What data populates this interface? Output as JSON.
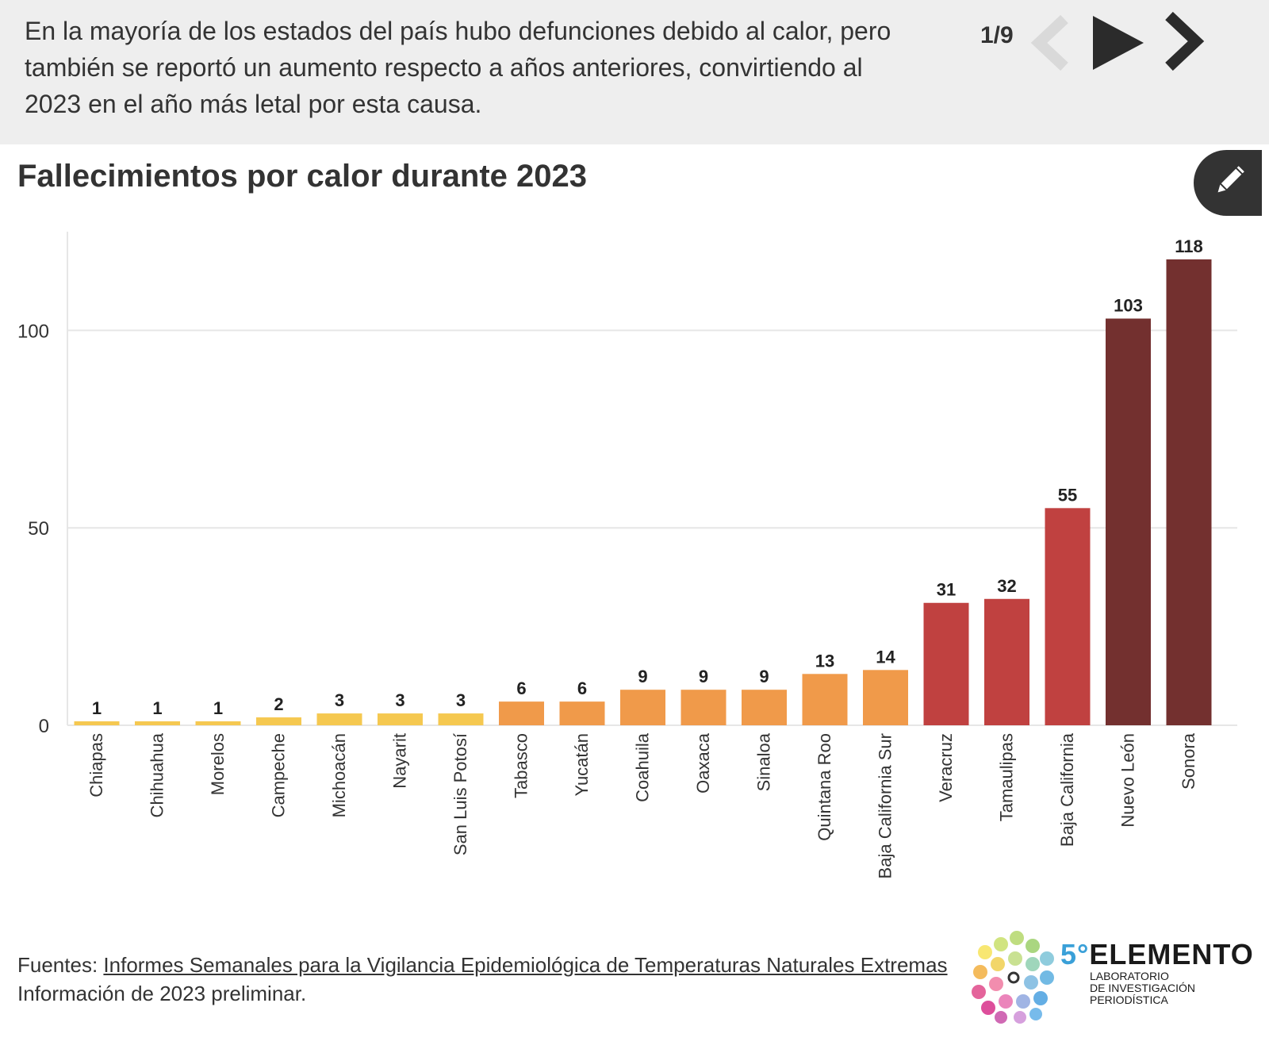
{
  "header": {
    "narrative": "En la mayoría de los estados del país hubo defunciones debido al calor, pero también se reportó un aumento respecto a años anteriores, convirtiendo al 2023 en el año más letal por esta causa.",
    "counter": "1/9"
  },
  "chart_data": {
    "type": "bar",
    "title": "Fallecimientos por calor durante 2023",
    "xlabel": "",
    "ylabel": "",
    "ylim": [
      0,
      125
    ],
    "yticks": [
      0,
      50,
      100
    ],
    "grid": true,
    "categories": [
      "Chiapas",
      "Chihuahua",
      "Morelos",
      "Campeche",
      "Michoacán",
      "Nayarit",
      "San Luis Potosí",
      "Tabasco",
      "Yucatán",
      "Coahuila",
      "Oaxaca",
      "Sinaloa",
      "Quintana Roo",
      "Baja California Sur",
      "Veracruz",
      "Tamaulipas",
      "Baja California",
      "Nuevo León",
      "Sonora"
    ],
    "values": [
      1,
      1,
      1,
      2,
      3,
      3,
      3,
      6,
      6,
      9,
      9,
      9,
      13,
      14,
      31,
      32,
      55,
      103,
      118
    ],
    "colors": [
      "#f5c850",
      "#f5c850",
      "#f5c850",
      "#f5c850",
      "#f5c850",
      "#f5c850",
      "#f5c850",
      "#f09a4a",
      "#f09a4a",
      "#f09a4a",
      "#f09a4a",
      "#f09a4a",
      "#f09a4a",
      "#f09a4a",
      "#c04140",
      "#c04140",
      "#c04140",
      "#73302f",
      "#73302f"
    ]
  },
  "footer": {
    "source_prefix": "Fuentes: ",
    "source_link": "Informes Semanales para la Vigilancia Epidemiológica de Temperaturas Naturales Extremas",
    "note": "Información de 2023 preliminar."
  },
  "logo": {
    "number": "5°",
    "name": "ELEMENTO",
    "line1": "LABORATORIO",
    "line2": "DE INVESTIGACIÓN",
    "line3": "PERIODÍSTICA"
  },
  "icons": {
    "prev": "chevron-left-icon",
    "play": "play-icon",
    "next": "chevron-right-icon",
    "edit": "pencil-icon"
  }
}
